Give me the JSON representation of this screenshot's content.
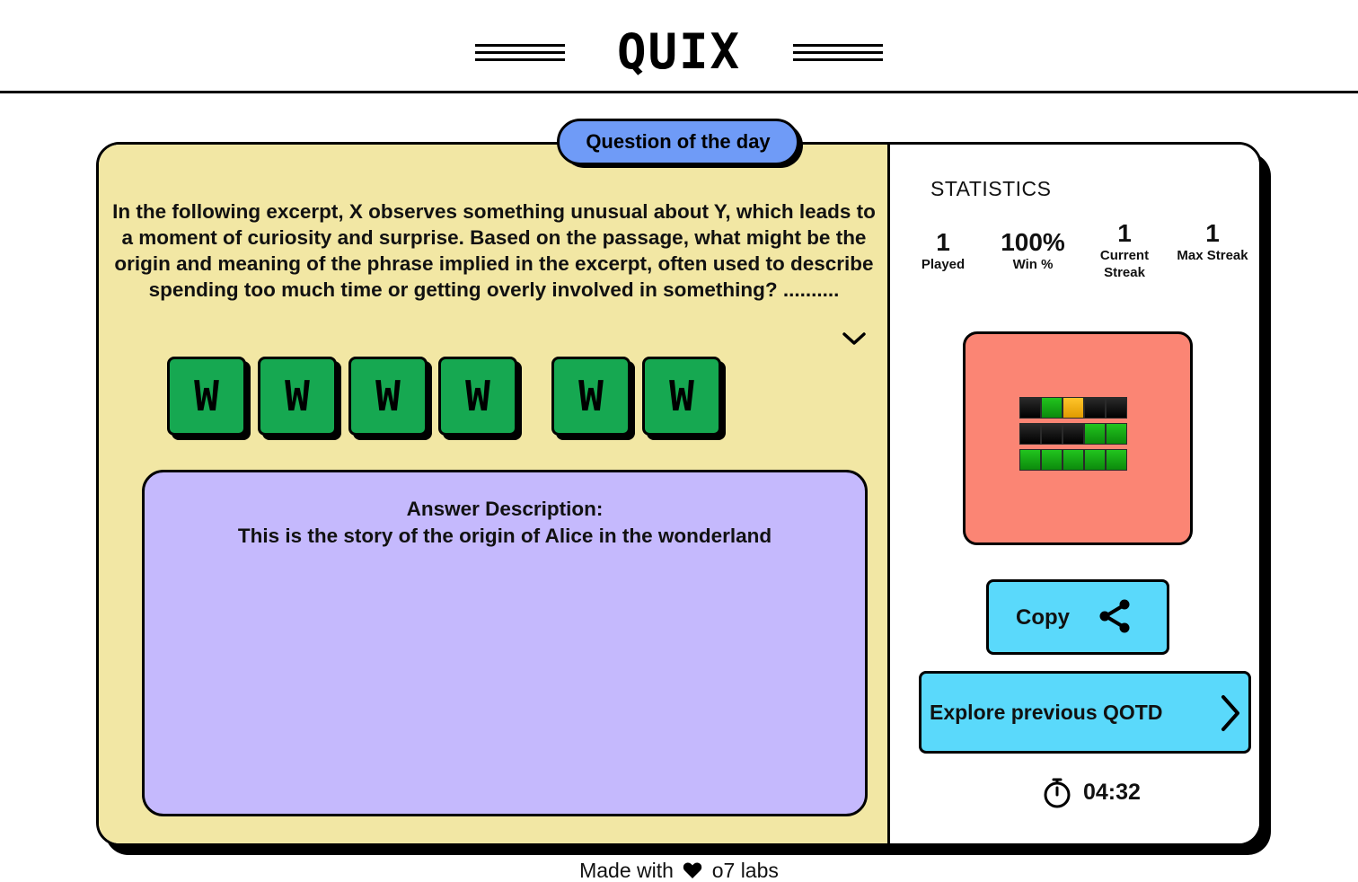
{
  "header": {
    "logo": "QUIX"
  },
  "question_card": {
    "badge": "Question of the day",
    "question": "In the following excerpt, X observes something unusual about Y, which leads to a moment of curiosity and surprise. Based on the passage, what might be the origin and meaning of the phrase implied in the excerpt, often used to describe spending too much time or getting overly involved in something? ..........",
    "tiles": [
      "W",
      "W",
      "W",
      "W",
      "W",
      "W"
    ],
    "answer_title": "Answer Description:",
    "answer_text": "This is the story of the origin of Alice in the wonderland"
  },
  "statistics": {
    "title": "STATISTICS",
    "items": [
      {
        "value": "1",
        "label": "Played"
      },
      {
        "value": "100%",
        "label": "Win %"
      },
      {
        "value": "1",
        "label": "Current Streak"
      },
      {
        "value": "1",
        "label": "Max Streak"
      }
    ],
    "result_grid": [
      [
        "black",
        "green",
        "yellow",
        "black",
        "black"
      ],
      [
        "black",
        "black",
        "black",
        "green",
        "green"
      ],
      [
        "green",
        "green",
        "green",
        "green",
        "green"
      ]
    ],
    "copy_label": "Copy",
    "explore_label": "Explore previous QOTD",
    "timer": "04:32"
  },
  "footer": {
    "prefix": "Made with",
    "suffix": "o7 labs"
  },
  "colors": {
    "question_bg": "#f2e7a4",
    "badge_bg": "#6f9bf7",
    "tile_green": "#16a851",
    "answer_bg": "#c5b9fd",
    "share_card_bg": "#fb8574",
    "button_cyan": "#5ad9fb"
  }
}
